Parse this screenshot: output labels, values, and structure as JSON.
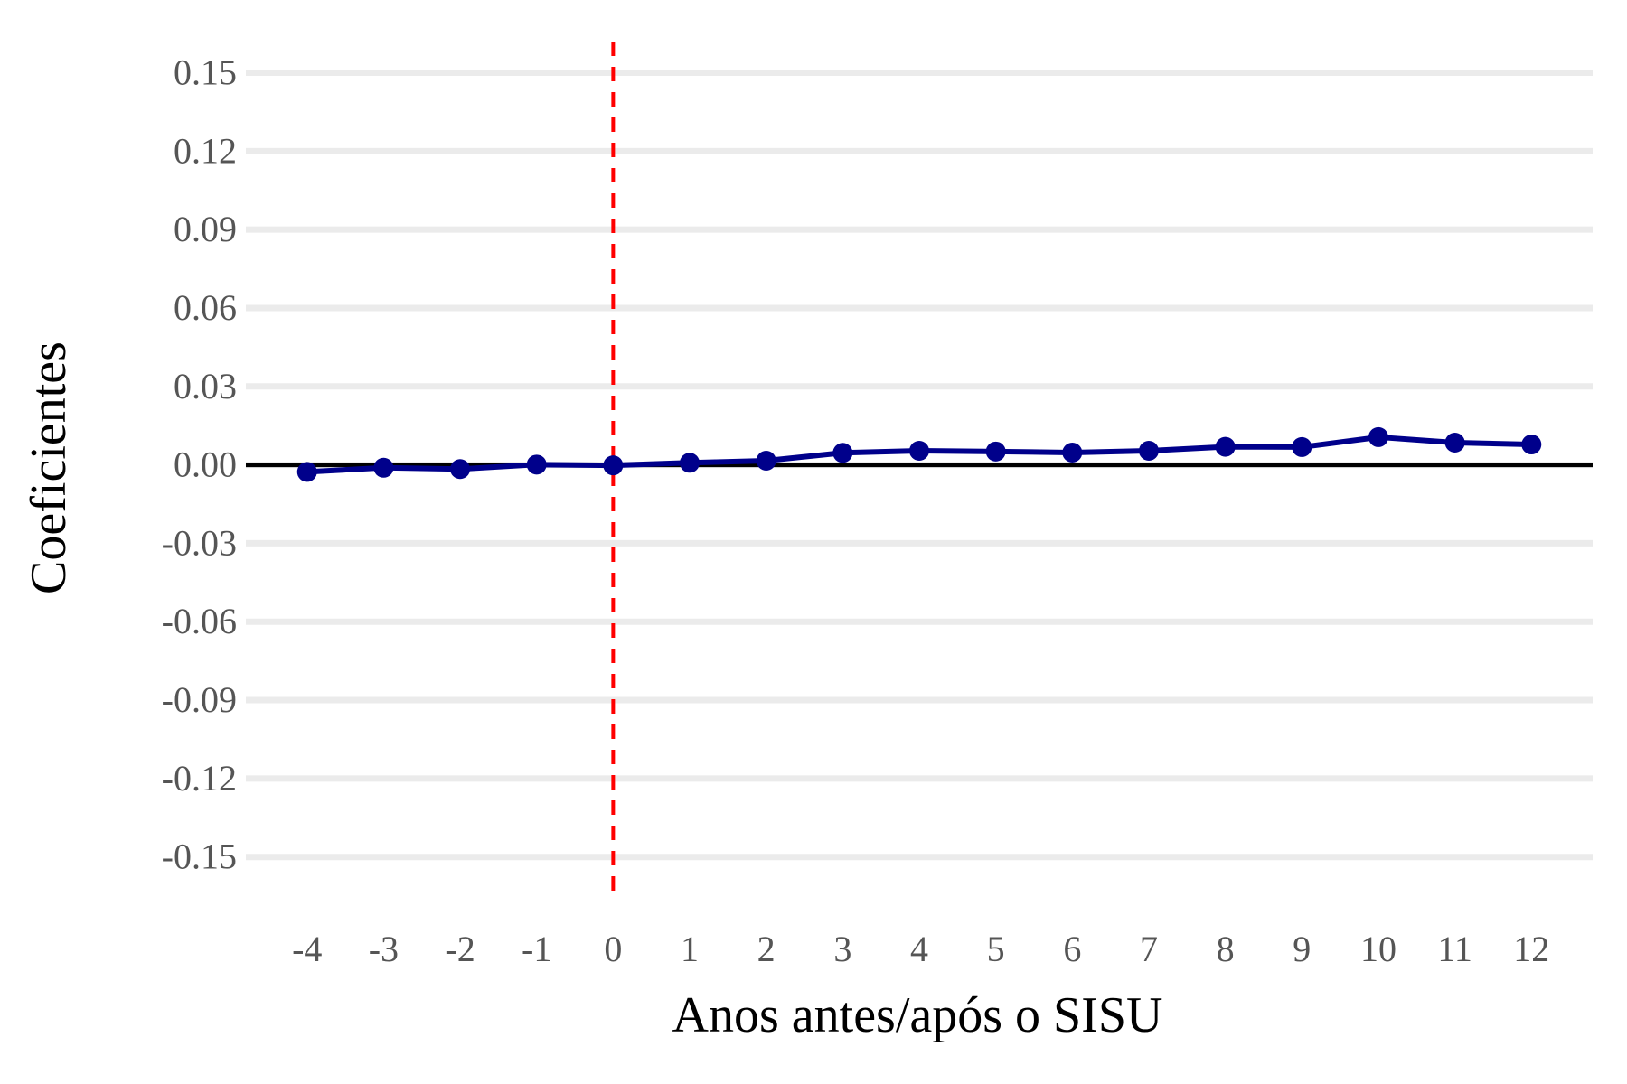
{
  "chart_data": {
    "type": "line",
    "title": "",
    "xlabel": "Anos antes/após o SISU",
    "ylabel": "Coeficientes",
    "x_ticks": [
      "-4",
      "-3",
      "-2",
      "-1",
      "0",
      "1",
      "2",
      "3",
      "4",
      "5",
      "6",
      "7",
      "8",
      "9",
      "10",
      "11",
      "12"
    ],
    "y_ticks": [
      "0.15",
      "0.12",
      "0.09",
      "0.06",
      "0.03",
      "0.00",
      "-0.03",
      "-0.06",
      "-0.09",
      "-0.12",
      "-0.15"
    ],
    "xlim": [
      -4.8,
      12.8
    ],
    "ylim": [
      -0.166,
      0.164
    ],
    "grid": "horizontal",
    "zero_line": true,
    "reference_vline_x": 0,
    "series": [
      {
        "x": [
          -4,
          -3,
          -2,
          -1,
          0,
          1,
          2,
          3,
          4,
          5,
          6,
          7,
          8,
          9,
          10,
          11,
          12
        ],
        "y": [
          -0.0027,
          -0.0011,
          -0.0016,
          0.0001,
          -0.0002,
          0.0008,
          0.0016,
          0.0046,
          0.0054,
          0.0051,
          0.0047,
          0.0054,
          0.0069,
          0.0068,
          0.0106,
          0.0085,
          0.0078
        ]
      }
    ],
    "colors": {
      "line": "#00008B",
      "grid": "#EBEBEB",
      "zero_line": "#000000",
      "vline": "#FF0000"
    }
  }
}
